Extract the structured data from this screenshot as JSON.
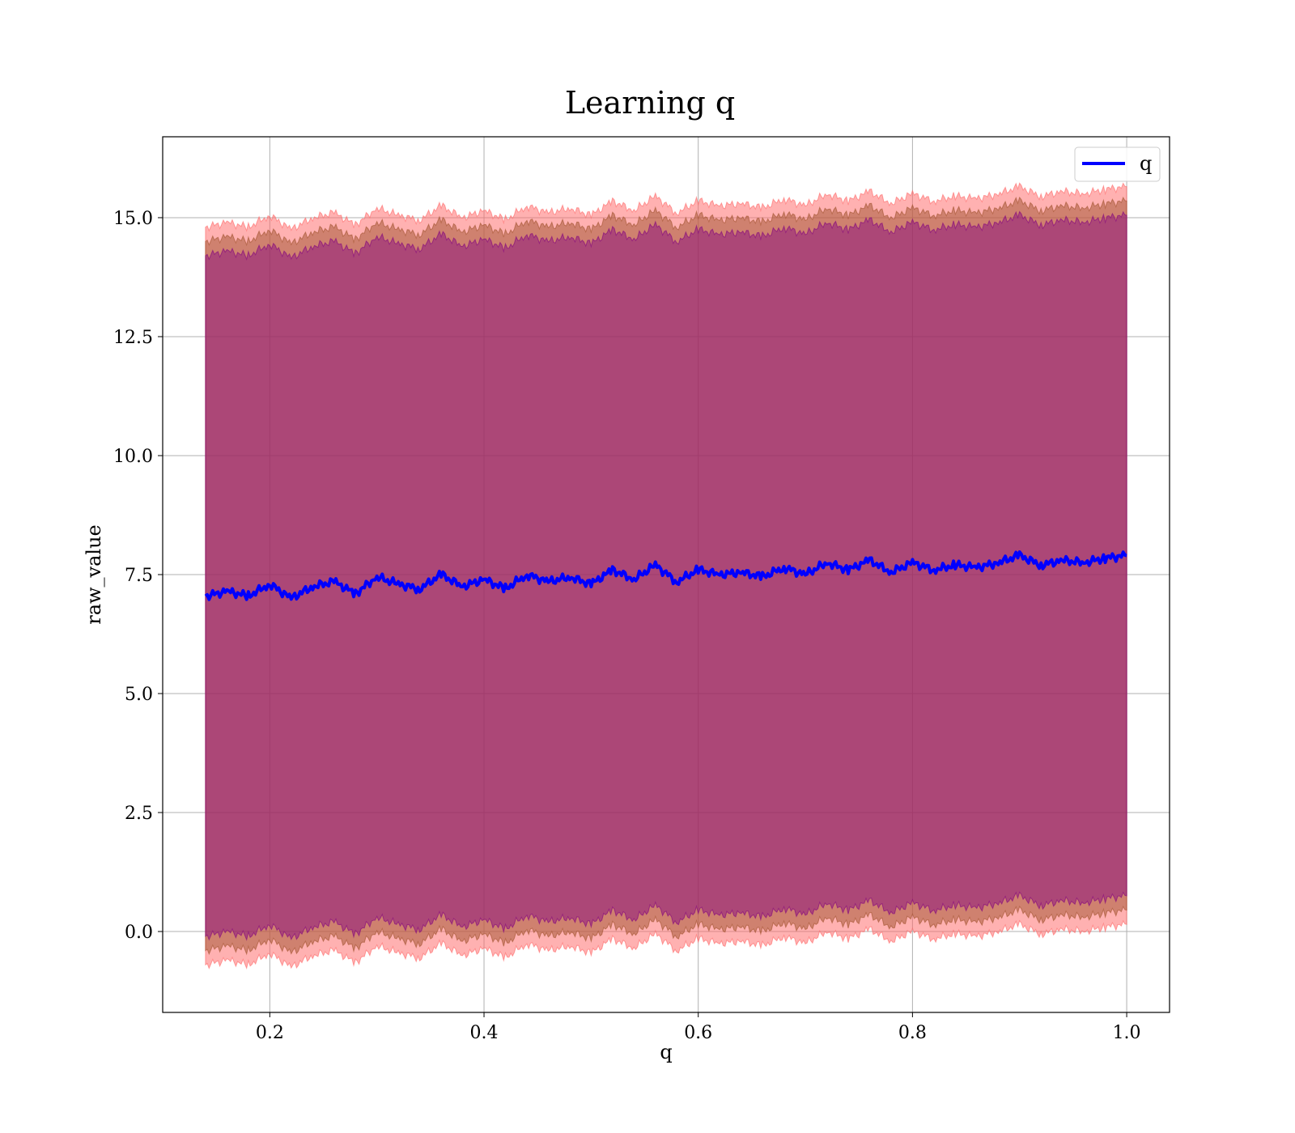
{
  "chart_data": {
    "type": "line",
    "title": "Learning q",
    "xlabel": "q",
    "ylabel": "raw_value",
    "xlim": [
      0.1,
      1.04
    ],
    "ylim": [
      -1.7,
      16.7
    ],
    "xticks": [
      0.2,
      0.4,
      0.6,
      0.8,
      1.0
    ],
    "xtick_labels": [
      "0.2",
      "0.4",
      "0.6",
      "0.8",
      "1.0"
    ],
    "yticks": [
      0.0,
      2.5,
      5.0,
      7.5,
      10.0,
      12.5,
      15.0
    ],
    "ytick_labels": [
      "0.0",
      "2.5",
      "5.0",
      "7.5",
      "10.0",
      "12.5",
      "15.0"
    ],
    "grid": true,
    "legend": {
      "placement": "top-right",
      "entries": [
        "q"
      ]
    },
    "series": [
      {
        "name": "q",
        "color": "#0000ff",
        "x": [
          0.14,
          0.16,
          0.18,
          0.2,
          0.22,
          0.24,
          0.26,
          0.28,
          0.3,
          0.32,
          0.34,
          0.36,
          0.38,
          0.4,
          0.42,
          0.44,
          0.46,
          0.48,
          0.5,
          0.52,
          0.54,
          0.56,
          0.58,
          0.6,
          0.62,
          0.64,
          0.66,
          0.68,
          0.7,
          0.72,
          0.74,
          0.76,
          0.78,
          0.8,
          0.82,
          0.84,
          0.86,
          0.88,
          0.9,
          0.92,
          0.94,
          0.96,
          0.98,
          1.0
        ],
        "y": [
          7.05,
          7.15,
          7.05,
          7.3,
          7.0,
          7.25,
          7.35,
          7.1,
          7.45,
          7.3,
          7.2,
          7.5,
          7.25,
          7.4,
          7.2,
          7.5,
          7.35,
          7.45,
          7.3,
          7.6,
          7.4,
          7.7,
          7.35,
          7.6,
          7.5,
          7.55,
          7.45,
          7.65,
          7.5,
          7.75,
          7.6,
          7.8,
          7.55,
          7.75,
          7.6,
          7.7,
          7.65,
          7.75,
          7.9,
          7.7,
          7.8,
          7.75,
          7.85,
          7.9
        ]
      }
    ],
    "bands": [
      {
        "color": "#ff6464",
        "alpha": 0.5,
        "offset": 7.75
      },
      {
        "color": "#a0522d",
        "alpha": 0.5,
        "offset": 7.45
      },
      {
        "color": "#800080",
        "alpha": 0.45,
        "offset": 7.15
      }
    ]
  }
}
